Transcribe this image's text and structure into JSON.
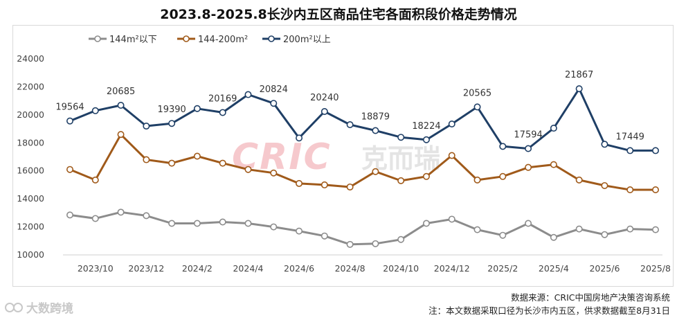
{
  "title": "2023.8-2025.8长沙内五区商品住宅各面积段价格走势情况",
  "source": "数据来源：CRIC中国房地产决策咨询系统",
  "note": "注：本文数据采取口径为长沙市内五区，供求数据截至8月31日",
  "watermark_text": "CRIC",
  "watermark_cn": "克而瑞",
  "footer_brand": "大数跨境",
  "chart_data": {
    "type": "line",
    "x": [
      "2023/9",
      "2023/10",
      "2023/11",
      "2023/12",
      "2024/1",
      "2024/2",
      "2024/3",
      "2024/4",
      "2024/5",
      "2024/6",
      "2024/7",
      "2024/8",
      "2024/9",
      "2024/10",
      "2024/11",
      "2024/12",
      "2025/1",
      "2025/2",
      "2025/3",
      "2025/4",
      "2025/5",
      "2025/6",
      "2025/7",
      "2025/8"
    ],
    "xtick_labels": [
      "2023/10",
      "2023/12",
      "2024/2",
      "2024/4",
      "2024/6",
      "2024/8",
      "2024/10",
      "2024/12",
      "2025/2",
      "2025/4",
      "2025/6",
      "2025/8"
    ],
    "ylim": [
      10000,
      24000
    ],
    "yticks": [
      10000,
      12000,
      14000,
      16000,
      18000,
      20000,
      22000,
      24000
    ],
    "legend_position": "top-left",
    "series": [
      {
        "name": "144m²以下",
        "color": "#8c8c8c",
        "values": [
          12850,
          12600,
          13050,
          12800,
          12250,
          12250,
          12350,
          12250,
          12000,
          11700,
          11350,
          10750,
          10800,
          11100,
          12250,
          12550,
          11800,
          11400,
          12250,
          11250,
          11850,
          11450,
          11850,
          11800
        ]
      },
      {
        "name": "144-200m²",
        "color": "#a05a1a",
        "values": [
          16100,
          15350,
          18600,
          16800,
          16550,
          17050,
          16550,
          16100,
          15850,
          15100,
          15000,
          14850,
          15950,
          15300,
          15600,
          17100,
          15350,
          15600,
          16250,
          16450,
          15350,
          14950,
          14650,
          14650
        ]
      },
      {
        "name": "200m²以上",
        "color": "#1f3f66",
        "values": [
          19564,
          20300,
          20685,
          19200,
          19390,
          20450,
          20169,
          21450,
          20824,
          18350,
          20240,
          19300,
          18879,
          18400,
          18224,
          19350,
          20565,
          17750,
          17594,
          19050,
          21867,
          17900,
          17449,
          17449
        ],
        "data_labels": [
          {
            "index": 0,
            "text": "19564"
          },
          {
            "index": 2,
            "text": "20685"
          },
          {
            "index": 4,
            "text": "19390"
          },
          {
            "index": 6,
            "text": "20169"
          },
          {
            "index": 8,
            "text": "20824"
          },
          {
            "index": 10,
            "text": "20240"
          },
          {
            "index": 12,
            "text": "18879"
          },
          {
            "index": 14,
            "text": "18224"
          },
          {
            "index": 16,
            "text": "20565"
          },
          {
            "index": 18,
            "text": "17594"
          },
          {
            "index": 20,
            "text": "21867"
          },
          {
            "index": 22,
            "text": "17449"
          }
        ]
      }
    ]
  }
}
